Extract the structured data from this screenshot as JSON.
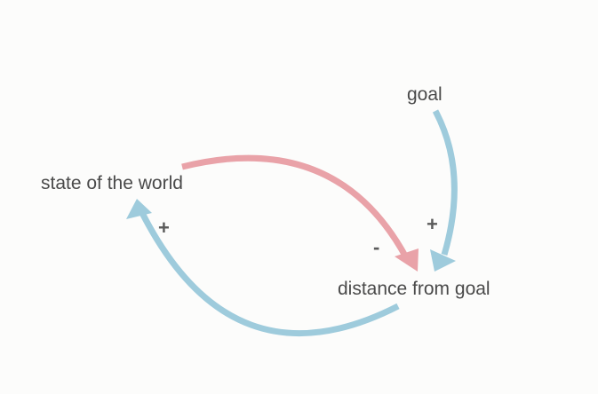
{
  "colors": {
    "background": "#fcfcfb",
    "positive_link": "#9ecbdc",
    "negative_link": "#e9a2a8",
    "label_text": "#4a4a4a"
  },
  "nodes": {
    "goal": "goal",
    "state": "state of the world",
    "distance": "distance from goal"
  },
  "links": [
    {
      "from": "goal",
      "to": "distance from goal",
      "polarity": "+",
      "color": "#9ecbdc"
    },
    {
      "from": "state of the world",
      "to": "distance from goal",
      "polarity": "-",
      "color": "#e9a2a8"
    },
    {
      "from": "distance from goal",
      "to": "state of the world",
      "polarity": "+",
      "color": "#9ecbdc"
    }
  ]
}
